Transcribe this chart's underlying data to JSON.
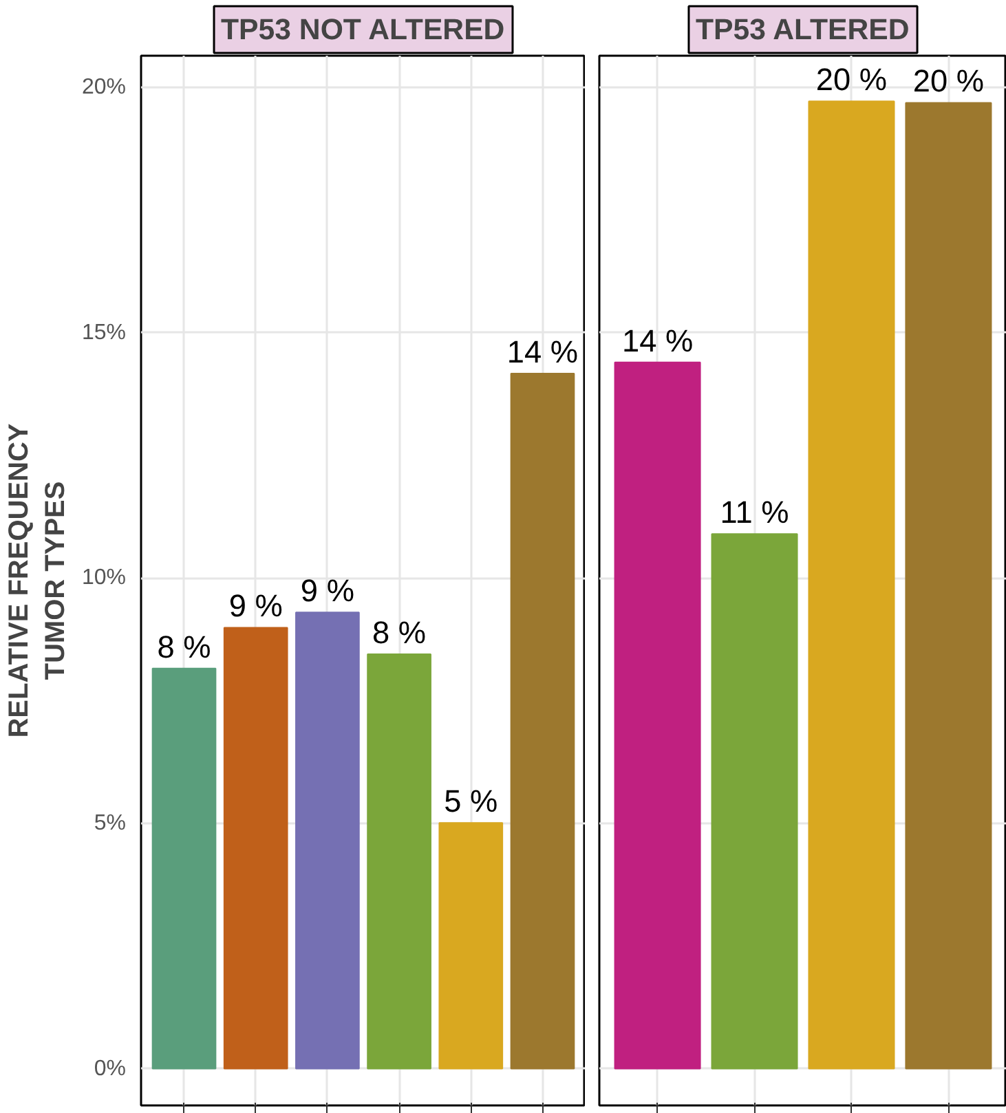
{
  "chart_data": [
    {
      "type": "bar",
      "title": "TP53 NOT ALTERED",
      "ylabel": "RELATIVE FREQUENCY\nTUMOR TYPES",
      "categories": [
        null,
        null,
        null,
        null,
        null,
        null
      ],
      "values": [
        8.16,
        8.99,
        9.3,
        8.45,
        5.01,
        14.17
      ],
      "colors": [
        "#5a9e7c",
        "#c0601a",
        "#7570b3",
        "#7ba63a",
        "#d9a820",
        "#9c782e"
      ],
      "value_labels": [
        "8 %",
        "9 %",
        "9 %",
        "8 %",
        "5 %",
        "14 %"
      ],
      "ylim": [
        -0.75,
        20.65
      ],
      "yticks": [
        {
          "value": 0,
          "label": "0%"
        },
        {
          "value": 5,
          "label": "5%"
        },
        {
          "value": 10,
          "label": "10%"
        },
        {
          "value": 15,
          "label": "15%"
        },
        {
          "value": 20,
          "label": "20%"
        }
      ],
      "grid": true,
      "tick_labels": "y"
    },
    {
      "type": "bar",
      "title": "TP53 ALTERED",
      "categories": [
        null,
        null,
        null,
        null
      ],
      "values": [
        14.4,
        10.9,
        19.72,
        19.69
      ],
      "colors": [
        "#c02080",
        "#7ba63a",
        "#d9a820",
        "#9c782e"
      ],
      "value_labels": [
        "14 %",
        "11 %",
        "20 %",
        "20 %"
      ],
      "ylim": [
        -0.75,
        20.65
      ],
      "yticks": [
        {
          "value": 0,
          "label": null
        },
        {
          "value": 5,
          "label": null
        },
        {
          "value": 10,
          "label": null
        },
        {
          "value": 15,
          "label": null
        },
        {
          "value": 20,
          "label": null
        }
      ],
      "grid": true,
      "tick_labels": false
    }
  ]
}
